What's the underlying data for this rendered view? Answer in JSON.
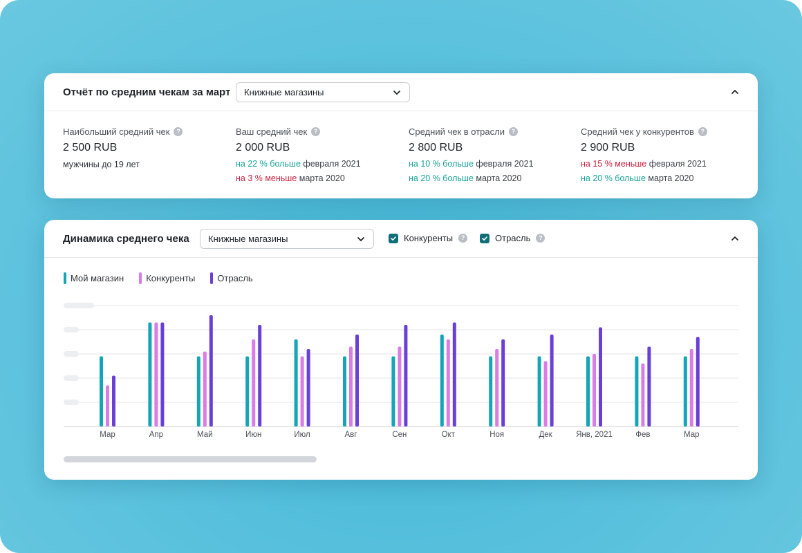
{
  "report": {
    "title": "Отчёт по средним чекам за март",
    "select_value": "Книжные магазины",
    "kpis": [
      {
        "label": "Наибольший средний чек",
        "value": "2 500 RUB",
        "sub": "мужчины до 19 лет",
        "lines": []
      },
      {
        "label": "Ваш средний чек",
        "value": "2 000 RUB",
        "sub": "",
        "lines": [
          {
            "highlight": "на 22 % больше",
            "trend": "up",
            "rest": "февраля 2021"
          },
          {
            "highlight": "на 3 % меньше",
            "trend": "down",
            "rest": "марта 2020"
          }
        ]
      },
      {
        "label": "Средний чек в отрасли",
        "value": "2 800 RUB",
        "sub": "",
        "lines": [
          {
            "highlight": "на 10 % больше",
            "trend": "up",
            "rest": "февраля 2021"
          },
          {
            "highlight": "на 20 % больше",
            "trend": "up",
            "rest": "марта 2020"
          }
        ]
      },
      {
        "label": "Средний чек у конкурентов",
        "value": "2 900 RUB",
        "sub": "",
        "lines": [
          {
            "highlight": "на 15 % меньше",
            "trend": "down",
            "rest": "февраля 2021"
          },
          {
            "highlight": "на 20 % больше",
            "trend": "up",
            "rest": "марта 2020"
          }
        ]
      }
    ]
  },
  "dynamics": {
    "title": "Динамика среднего чека",
    "select_value": "Книжные магазины",
    "checkbox_competitors": "Конкуренты",
    "checkbox_industry": "Отрасль"
  },
  "colors": {
    "my_store": "#14a5b8",
    "competitors": "#d97ce6",
    "industry": "#6a3fd6",
    "accent_up": "#17a39a",
    "accent_down": "#d0203f"
  },
  "chart_data": {
    "type": "bar",
    "categories": [
      "Мар",
      "Апр",
      "Май",
      "Июн",
      "Июл",
      "Авг",
      "Сен",
      "Окт",
      "Ноя",
      "Дек",
      "Янв, 2021",
      "Фев",
      "Мар"
    ],
    "series": [
      {
        "name": "Мой магазин",
        "values": [
          2.9,
          4.3,
          2.9,
          2.9,
          3.6,
          2.9,
          2.9,
          3.8,
          2.9,
          2.9,
          2.9,
          2.9,
          2.9
        ]
      },
      {
        "name": "Конкуренты",
        "values": [
          1.7,
          4.3,
          3.1,
          3.6,
          2.9,
          3.3,
          3.3,
          3.6,
          3.2,
          2.7,
          3.0,
          2.6,
          3.2
        ]
      },
      {
        "name": "Отрасль",
        "values": [
          2.1,
          4.3,
          4.6,
          4.2,
          3.2,
          3.8,
          4.2,
          4.3,
          3.6,
          3.8,
          4.1,
          3.3,
          3.7
        ]
      }
    ],
    "ylim": [
      0,
      5
    ],
    "grid": true,
    "legend": "top-left",
    "xlabel": "",
    "ylabel": "",
    "title": ""
  }
}
